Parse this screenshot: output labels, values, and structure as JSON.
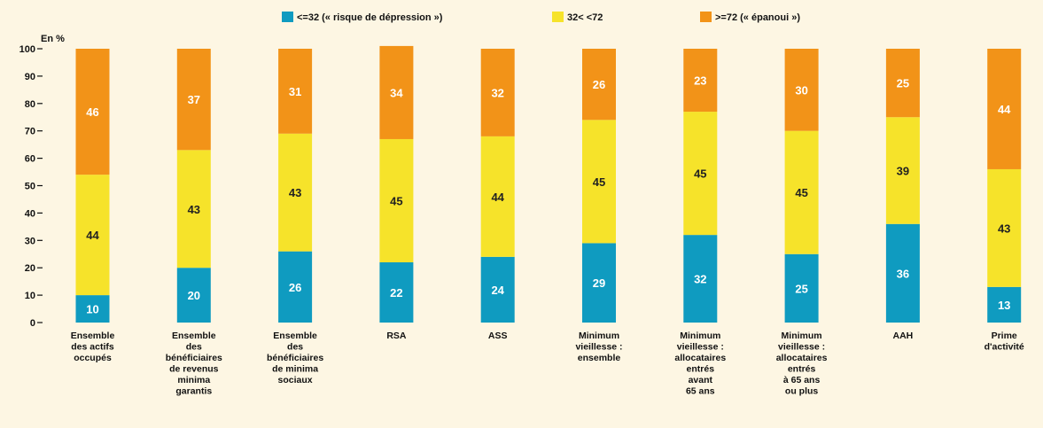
{
  "chart_data": {
    "type": "bar",
    "stacked": true,
    "ylabel": "En %",
    "ylim": [
      0,
      100
    ],
    "yticks": [
      0,
      10,
      20,
      30,
      40,
      50,
      60,
      70,
      80,
      90,
      100
    ],
    "grid": false,
    "legend_position": "top",
    "categories": [
      [
        "Ensemble",
        "des actifs",
        "occupés"
      ],
      [
        "Ensemble",
        "des",
        "bénéficiaires",
        "de revenus",
        "minima",
        "garantis"
      ],
      [
        "Ensemble",
        "des",
        "bénéficiaires",
        "de minima",
        "sociaux"
      ],
      [
        "RSA"
      ],
      [
        "ASS"
      ],
      [
        "Minimum",
        "vieillesse :",
        "ensemble"
      ],
      [
        "Minimum",
        "vieillesse :",
        "allocataires",
        "entrés",
        "avant",
        "65 ans"
      ],
      [
        "Minimum",
        "vieillesse :",
        "allocataires",
        "entrés",
        "à 65 ans",
        "ou plus"
      ],
      [
        "AAH"
      ],
      [
        "Prime",
        "d'activité"
      ]
    ],
    "series": [
      {
        "name": "<=32 (« risque de dépression »)",
        "color": "#0f9bc0",
        "label_color": "#ffffff",
        "values": [
          10,
          20,
          26,
          22,
          24,
          29,
          32,
          25,
          36,
          13
        ]
      },
      {
        "name": "32< <72",
        "color": "#f6e32a",
        "label_color": "#222222",
        "values": [
          44,
          43,
          43,
          45,
          44,
          45,
          45,
          45,
          39,
          43
        ]
      },
      {
        "name": ">=72 (« épanoui »)",
        "color": "#f29318",
        "label_color": "#ffffff",
        "values": [
          46,
          37,
          31,
          34,
          32,
          26,
          23,
          30,
          25,
          44
        ]
      }
    ]
  }
}
